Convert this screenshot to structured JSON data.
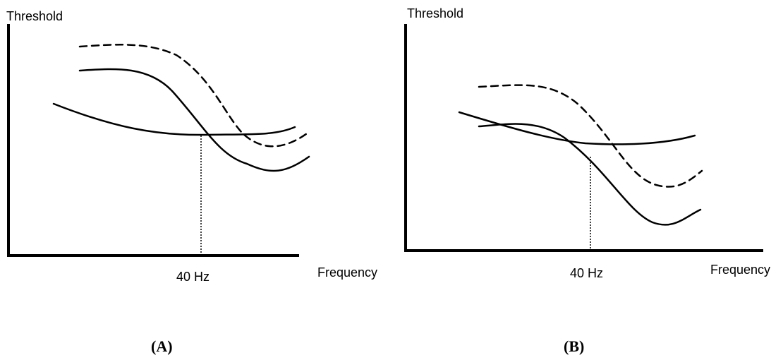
{
  "panels": [
    {
      "id": "A",
      "panel_label": "(A)",
      "y_axis_label": "Threshold",
      "x_axis_label": "Frequency",
      "marker_label": "40 Hz"
    },
    {
      "id": "B",
      "panel_label": "(B)",
      "y_axis_label": "Threshold",
      "x_axis_label": "Frequency",
      "marker_label": "40 Hz"
    }
  ],
  "colors": {
    "ink": "#000000",
    "background": "#ffffff"
  }
}
